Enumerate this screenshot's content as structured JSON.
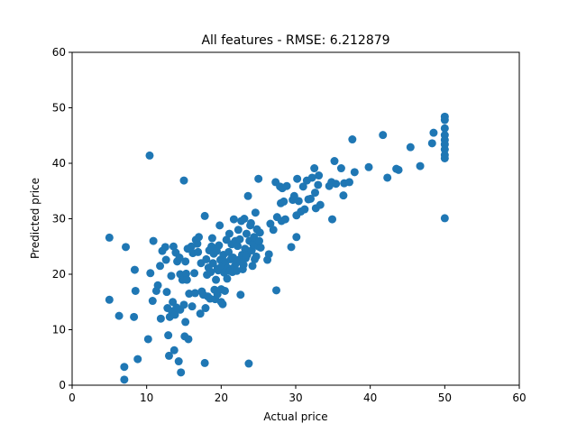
{
  "chart_data": {
    "type": "scatter",
    "title": "All features - RMSE: 6.212879",
    "xlabel": "Actual price",
    "ylabel": "Predicted price",
    "xlim": [
      0,
      60
    ],
    "ylim": [
      0,
      60
    ],
    "xticks": [
      0,
      10,
      20,
      30,
      40,
      50,
      60
    ],
    "yticks": [
      0,
      10,
      20,
      30,
      40,
      50,
      60
    ],
    "grid": false,
    "marker_color": "#1f77b4",
    "points": [
      [
        5.0,
        26.6
      ],
      [
        5.0,
        15.4
      ],
      [
        6.3,
        12.5
      ],
      [
        7.0,
        3.3
      ],
      [
        7.0,
        1.0
      ],
      [
        7.2,
        24.9
      ],
      [
        8.3,
        12.3
      ],
      [
        8.4,
        20.8
      ],
      [
        8.5,
        17.0
      ],
      [
        8.8,
        4.7
      ],
      [
        10.2,
        8.3
      ],
      [
        10.4,
        41.4
      ],
      [
        10.5,
        20.2
      ],
      [
        10.8,
        15.2
      ],
      [
        10.9,
        26.0
      ],
      [
        11.3,
        17.0
      ],
      [
        11.5,
        18.0
      ],
      [
        11.8,
        21.5
      ],
      [
        11.9,
        12.0
      ],
      [
        12.1,
        24.2
      ],
      [
        12.5,
        24.9
      ],
      [
        12.6,
        22.6
      ],
      [
        12.7,
        16.8
      ],
      [
        12.8,
        13.9
      ],
      [
        12.9,
        9.0
      ],
      [
        13.0,
        5.3
      ],
      [
        13.1,
        12.3
      ],
      [
        13.3,
        19.7
      ],
      [
        13.4,
        13.3
      ],
      [
        13.5,
        15.0
      ],
      [
        13.6,
        25.0
      ],
      [
        13.7,
        6.3
      ],
      [
        13.8,
        12.7
      ],
      [
        13.9,
        23.9
      ],
      [
        14.0,
        14.0
      ],
      [
        14.1,
        22.3
      ],
      [
        14.3,
        4.3
      ],
      [
        14.4,
        23.0
      ],
      [
        14.5,
        20.0
      ],
      [
        14.5,
        13.6
      ],
      [
        14.6,
        2.3
      ],
      [
        14.8,
        19.0
      ],
      [
        15.0,
        36.9
      ],
      [
        15.0,
        14.5
      ],
      [
        15.1,
        8.8
      ],
      [
        15.2,
        22.3
      ],
      [
        15.2,
        11.4
      ],
      [
        15.3,
        20.1
      ],
      [
        15.4,
        19.0
      ],
      [
        15.5,
        24.6
      ],
      [
        15.6,
        8.3
      ],
      [
        15.7,
        16.5
      ],
      [
        16.0,
        25.0
      ],
      [
        16.1,
        14.2
      ],
      [
        16.2,
        23.8
      ],
      [
        16.4,
        20.2
      ],
      [
        16.5,
        16.6
      ],
      [
        16.6,
        26.2
      ],
      [
        16.8,
        25.5
      ],
      [
        16.9,
        24.0
      ],
      [
        17.0,
        26.7
      ],
      [
        17.2,
        12.9
      ],
      [
        17.3,
        22.0
      ],
      [
        17.4,
        16.9
      ],
      [
        17.6,
        16.3
      ],
      [
        17.8,
        30.5
      ],
      [
        17.8,
        4.0
      ],
      [
        17.9,
        13.9
      ],
      [
        18.0,
        22.7
      ],
      [
        18.1,
        19.9
      ],
      [
        18.2,
        16.0
      ],
      [
        18.3,
        21.2
      ],
      [
        18.4,
        24.3
      ],
      [
        18.5,
        15.6
      ],
      [
        18.6,
        20.4
      ],
      [
        18.7,
        25.0
      ],
      [
        18.8,
        26.5
      ],
      [
        18.9,
        22.0
      ],
      [
        19.0,
        23.7
      ],
      [
        19.1,
        17.2
      ],
      [
        19.2,
        15.5
      ],
      [
        19.3,
        19.0
      ],
      [
        19.4,
        24.2
      ],
      [
        19.5,
        21.0
      ],
      [
        19.5,
        16.4
      ],
      [
        19.6,
        20.7
      ],
      [
        19.7,
        25.2
      ],
      [
        19.8,
        28.8
      ],
      [
        19.9,
        22.6
      ],
      [
        20.0,
        17.3
      ],
      [
        20.0,
        15.0
      ],
      [
        20.1,
        21.5
      ],
      [
        20.2,
        14.6
      ],
      [
        20.3,
        23.5
      ],
      [
        20.4,
        20.3
      ],
      [
        20.5,
        17.0
      ],
      [
        20.6,
        22.2
      ],
      [
        20.7,
        26.2
      ],
      [
        20.8,
        19.2
      ],
      [
        20.9,
        21.1
      ],
      [
        21.0,
        24.0
      ],
      [
        21.1,
        27.3
      ],
      [
        21.2,
        20.6
      ],
      [
        21.3,
        22.7
      ],
      [
        21.4,
        25.4
      ],
      [
        21.5,
        20.4
      ],
      [
        21.6,
        23.0
      ],
      [
        21.7,
        29.9
      ],
      [
        21.8,
        21.4
      ],
      [
        21.9,
        26.0
      ],
      [
        22.0,
        22.0
      ],
      [
        22.1,
        20.6
      ],
      [
        22.2,
        25.1
      ],
      [
        22.3,
        28.0
      ],
      [
        22.4,
        22.6
      ],
      [
        22.5,
        26.3
      ],
      [
        22.6,
        16.3
      ],
      [
        22.7,
        29.6
      ],
      [
        22.8,
        23.5
      ],
      [
        22.9,
        20.9
      ],
      [
        23.0,
        21.7
      ],
      [
        23.1,
        30.0
      ],
      [
        23.2,
        24.6
      ],
      [
        23.3,
        22.9
      ],
      [
        23.4,
        27.3
      ],
      [
        23.5,
        23.5
      ],
      [
        23.6,
        34.1
      ],
      [
        23.7,
        3.9
      ],
      [
        23.8,
        26.0
      ],
      [
        23.9,
        28.8
      ],
      [
        24.0,
        29.2
      ],
      [
        24.1,
        24.3
      ],
      [
        24.2,
        21.5
      ],
      [
        24.3,
        25.4
      ],
      [
        24.4,
        26.7
      ],
      [
        24.5,
        22.7
      ],
      [
        24.6,
        31.1
      ],
      [
        24.7,
        23.2
      ],
      [
        24.8,
        28.1
      ],
      [
        25.0,
        37.2
      ],
      [
        25.0,
        25.0
      ],
      [
        25.1,
        26.0
      ],
      [
        25.2,
        27.5
      ],
      [
        25.3,
        24.8
      ],
      [
        26.2,
        22.6
      ],
      [
        26.4,
        23.6
      ],
      [
        26.6,
        29.1
      ],
      [
        27.0,
        28.0
      ],
      [
        27.3,
        36.6
      ],
      [
        27.4,
        17.1
      ],
      [
        27.5,
        30.3
      ],
      [
        27.9,
        35.8
      ],
      [
        28.0,
        32.8
      ],
      [
        28.1,
        29.6
      ],
      [
        28.2,
        35.5
      ],
      [
        28.4,
        33.1
      ],
      [
        28.6,
        29.9
      ],
      [
        28.8,
        35.9
      ],
      [
        29.4,
        24.9
      ],
      [
        29.6,
        33.4
      ],
      [
        29.8,
        34.1
      ],
      [
        30.1,
        30.6
      ],
      [
        30.1,
        26.7
      ],
      [
        30.2,
        37.2
      ],
      [
        30.4,
        33.2
      ],
      [
        30.7,
        31.3
      ],
      [
        31.0,
        35.8
      ],
      [
        31.2,
        31.7
      ],
      [
        31.5,
        36.9
      ],
      [
        31.7,
        33.5
      ],
      [
        32.0,
        33.6
      ],
      [
        32.2,
        37.4
      ],
      [
        32.5,
        39.1
      ],
      [
        32.6,
        34.7
      ],
      [
        32.7,
        31.9
      ],
      [
        33.0,
        36.1
      ],
      [
        33.1,
        37.8
      ],
      [
        33.3,
        32.5
      ],
      [
        34.5,
        35.9
      ],
      [
        34.8,
        36.6
      ],
      [
        34.9,
        29.9
      ],
      [
        35.2,
        40.4
      ],
      [
        35.4,
        36.3
      ],
      [
        36.1,
        39.1
      ],
      [
        36.4,
        34.2
      ],
      [
        36.5,
        36.4
      ],
      [
        37.2,
        36.6
      ],
      [
        37.6,
        44.3
      ],
      [
        37.9,
        38.4
      ],
      [
        39.8,
        39.3
      ],
      [
        41.7,
        45.1
      ],
      [
        42.3,
        37.4
      ],
      [
        43.5,
        39.0
      ],
      [
        43.8,
        38.8
      ],
      [
        45.4,
        42.9
      ],
      [
        46.7,
        39.5
      ],
      [
        48.3,
        43.6
      ],
      [
        48.5,
        45.5
      ],
      [
        50.0,
        48.4
      ],
      [
        50.0,
        47.8
      ],
      [
        50.0,
        46.3
      ],
      [
        50.0,
        45.1
      ],
      [
        50.0,
        44.2
      ],
      [
        50.0,
        43.4
      ],
      [
        50.0,
        42.5
      ],
      [
        50.0,
        41.5
      ],
      [
        50.0,
        40.9
      ],
      [
        50.0,
        30.1
      ]
    ]
  }
}
